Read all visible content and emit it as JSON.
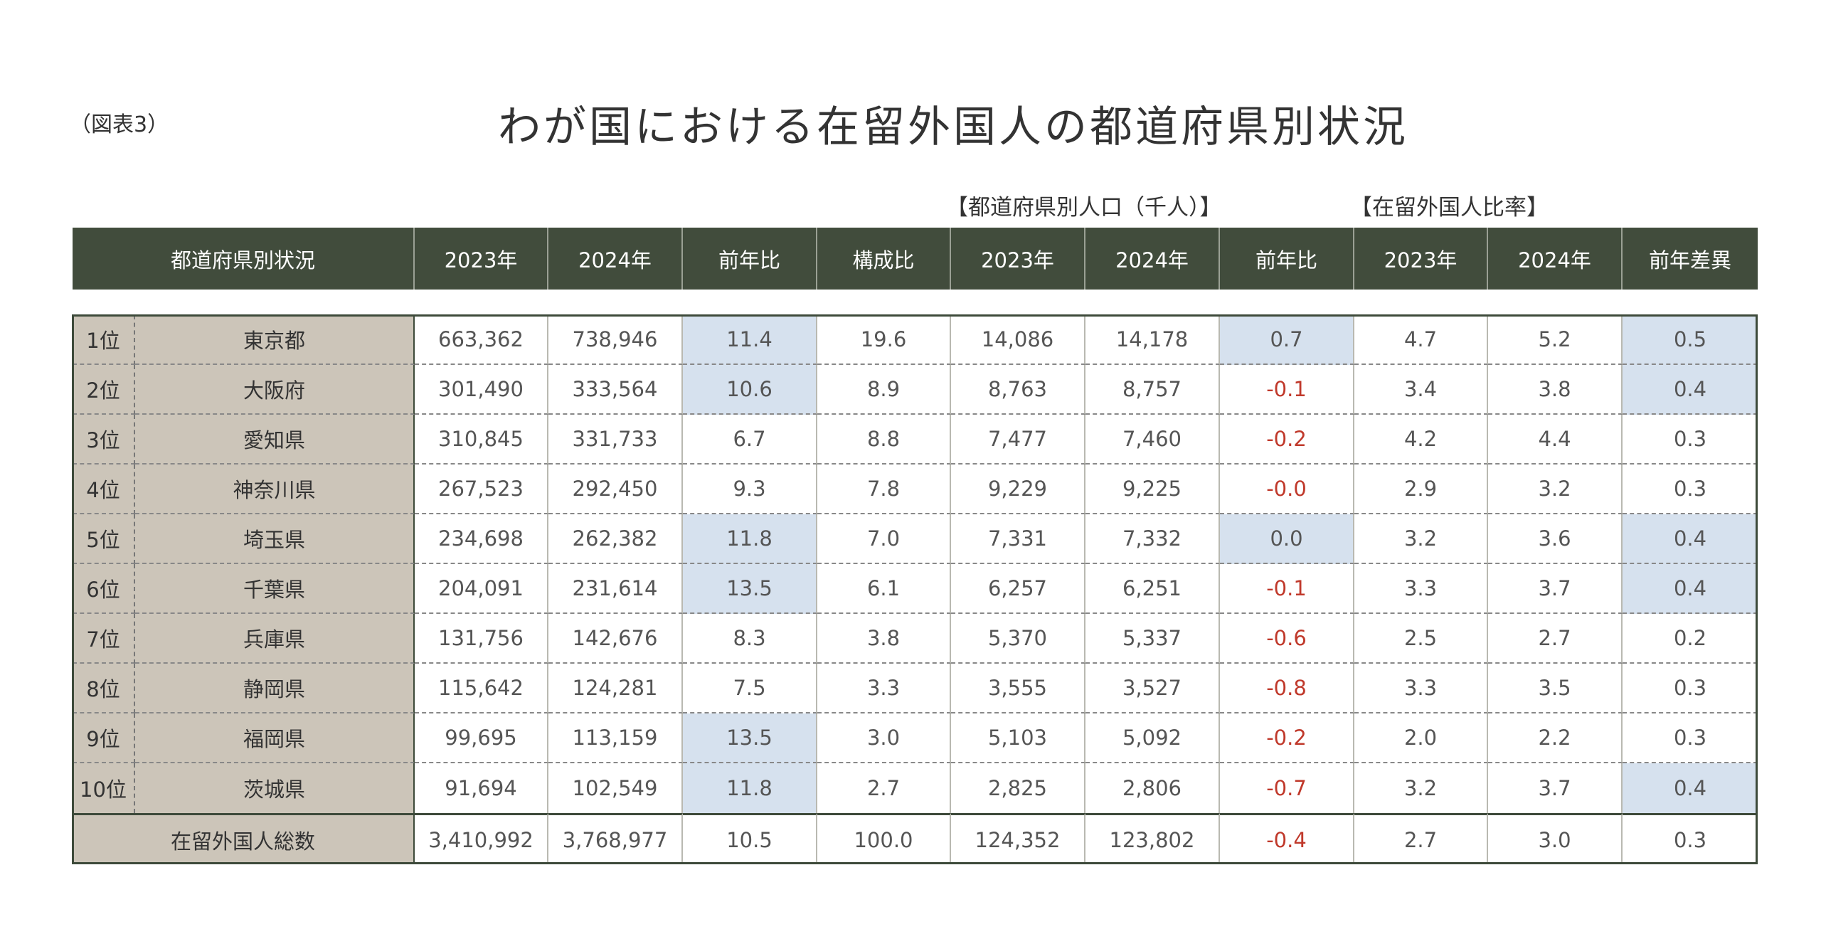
{
  "caption": "（図表3）",
  "title": "わが国における在留外国人の都道府県別状況",
  "group_headers": [
    "【都道府県別人口（千人）】",
    "【在留外国人比率】"
  ],
  "table": {
    "header": [
      "都道府県別状況",
      "2023年",
      "2024年",
      "前年比",
      "構成比",
      "2023年",
      "2024年",
      "前年比",
      "2023年",
      "2024年",
      "前年差異"
    ],
    "rows": [
      [
        "1位",
        "東京都",
        "663,362",
        "738,946",
        "11.4",
        "19.6",
        "14,086",
        "14,178",
        "0.7",
        "4.7",
        "5.2",
        "0.5"
      ],
      [
        "2位",
        "大阪府",
        "301,490",
        "333,564",
        "10.6",
        "8.9",
        "8,763",
        "8,757",
        "-0.1",
        "3.4",
        "3.8",
        "0.4"
      ],
      [
        "3位",
        "愛知県",
        "310,845",
        "331,733",
        "6.7",
        "8.8",
        "7,477",
        "7,460",
        "-0.2",
        "4.2",
        "4.4",
        "0.3"
      ],
      [
        "4位",
        "神奈川県",
        "267,523",
        "292,450",
        "9.3",
        "7.8",
        "9,229",
        "9,225",
        "-0.0",
        "2.9",
        "3.2",
        "0.3"
      ],
      [
        "5位",
        "埼玉県",
        "234,698",
        "262,382",
        "11.8",
        "7.0",
        "7,331",
        "7,332",
        "0.0",
        "3.2",
        "3.6",
        "0.4"
      ],
      [
        "6位",
        "千葉県",
        "204,091",
        "231,614",
        "13.5",
        "6.1",
        "6,257",
        "6,251",
        "-0.1",
        "3.3",
        "3.7",
        "0.4"
      ],
      [
        "7位",
        "兵庫県",
        "131,756",
        "142,676",
        "8.3",
        "3.8",
        "5,370",
        "5,337",
        "-0.6",
        "2.5",
        "2.7",
        "0.2"
      ],
      [
        "8位",
        "静岡県",
        "115,642",
        "124,281",
        "7.5",
        "3.3",
        "3,555",
        "3,527",
        "-0.8",
        "3.3",
        "3.5",
        "0.3"
      ],
      [
        "9位",
        "福岡県",
        "99,695",
        "113,159",
        "13.5",
        "3.0",
        "5,103",
        "5,092",
        "-0.2",
        "2.0",
        "2.2",
        "0.3"
      ],
      [
        "10位",
        "茨城県",
        "91,694",
        "102,549",
        "11.8",
        "2.7",
        "2,825",
        "2,806",
        "-0.7",
        "3.2",
        "3.7",
        "0.4"
      ]
    ],
    "total": [
      "在留外国人総数",
      "3,410,992",
      "3,768,977",
      "10.5",
      "100.0",
      "124,352",
      "123,802",
      "-0.4",
      "2.7",
      "3.0",
      "0.3"
    ]
  }
}
